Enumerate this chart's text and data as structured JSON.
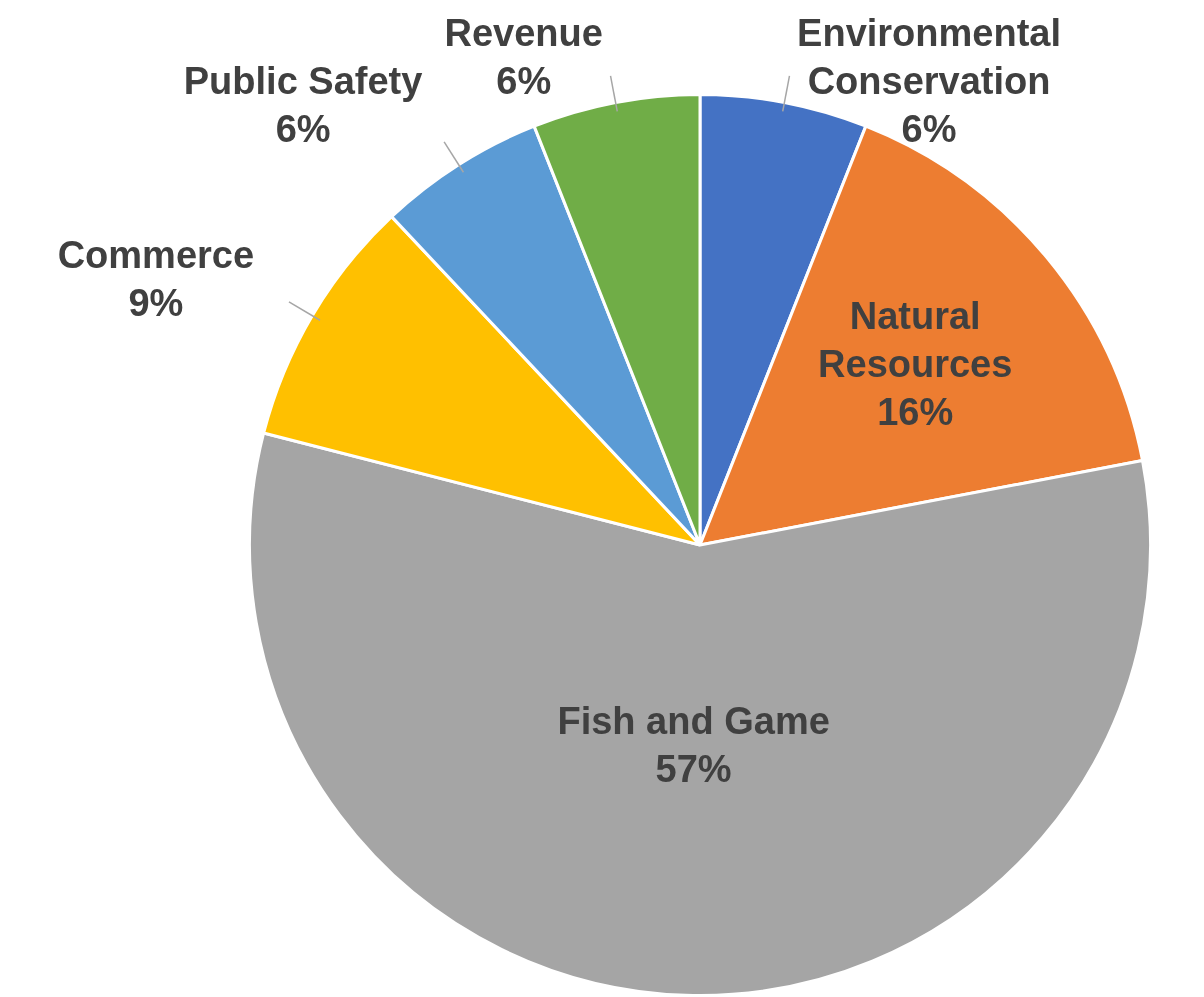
{
  "chart_data": {
    "type": "pie",
    "categories": [
      "Environmental Conservation",
      "Natural Resources",
      "Fish and Game",
      "Commerce",
      "Public Safety",
      "Revenue"
    ],
    "values": [
      6,
      16,
      57,
      9,
      6,
      6
    ],
    "value_labels": [
      "6%",
      "16%",
      "57%",
      "9%",
      "6%",
      "6%"
    ],
    "colors": [
      "#4472c4",
      "#ed7d31",
      "#a5a5a5",
      "#ffc000",
      "#5b9bd5",
      "#70ad47"
    ],
    "legend": false
  }
}
